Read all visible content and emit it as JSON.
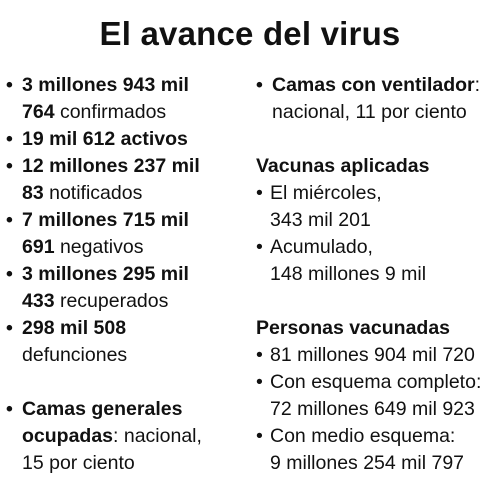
{
  "title": "El avance del virus",
  "bullet": "•",
  "left": {
    "confirmados": {
      "line1": "3 millones 943 mil",
      "bold2": "764",
      "rest2": " confirmados"
    },
    "activos": {
      "line1": "19 mil 612 activos"
    },
    "notificados": {
      "line1": "12 millones 237 mil",
      "bold2": "83",
      "rest2": " notificados"
    },
    "negativos": {
      "line1": "7 millones 715 mil",
      "bold2": "691",
      "rest2": " negativos"
    },
    "recuperados": {
      "line1": "3 millones 295 mil",
      "bold2": "433",
      "rest2": " recuperados"
    },
    "defunciones": {
      "line1": "298 mil 508",
      "line2": "defunciones"
    },
    "camas_generales": {
      "bold1": "Camas generales",
      "bold2": "ocupadas",
      "rest2": ": nacional,",
      "line3": "15 por ciento"
    }
  },
  "right": {
    "camas_ventilador": {
      "bold1": "Camas con ventilador",
      "rest1": ":",
      "line2": "nacional, 11 por ciento"
    },
    "vacunas": {
      "heading": "Vacunas aplicadas",
      "items": [
        {
          "line1": "El miércoles,",
          "line2": "343 mil 201"
        },
        {
          "line1": "Acumulado,",
          "line2": "148 millones 9 mil"
        }
      ]
    },
    "personas": {
      "heading": "Personas vacunadas",
      "items": [
        {
          "line1": "81 millones 904 mil 720"
        },
        {
          "line1": "Con esquema completo:",
          "line2": "72 millones 649 mil 923"
        },
        {
          "line1": "Con medio esquema:",
          "line2": "9 millones 254 mil 797"
        }
      ]
    }
  }
}
